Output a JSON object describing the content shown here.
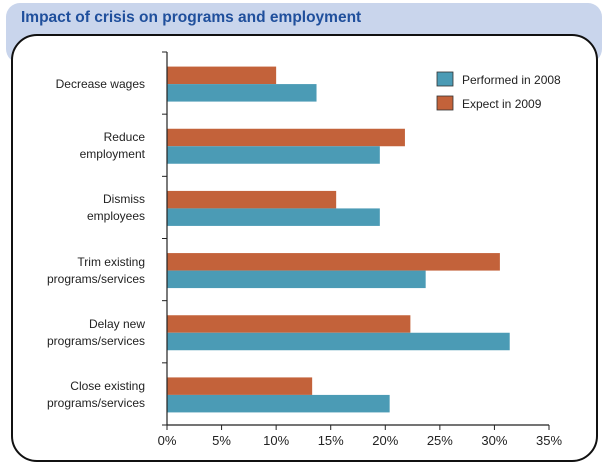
{
  "chart_data": {
    "type": "bar",
    "orientation": "horizontal",
    "title": "Impact of crisis on programs and employment",
    "categories": [
      "Decrease wages",
      "Reduce\nemployment",
      "Dismiss\nemployees",
      "Trim existing\nprograms/services",
      "Delay new\nprograms/services",
      "Close existing\nprograms/services"
    ],
    "series": [
      {
        "name": "Expect in 2009",
        "color": "#c3623a",
        "values": [
          10,
          21.8,
          15.5,
          30.5,
          22.3,
          13.3
        ]
      },
      {
        "name": "Performed in 2008",
        "color": "#4b9bb5",
        "values": [
          13.7,
          19.5,
          19.5,
          23.7,
          31.4,
          20.4
        ]
      }
    ],
    "xlim": [
      0,
      35
    ],
    "xticks": [
      "0%",
      "5%",
      "10%",
      "15%",
      "20%",
      "25%",
      "30%",
      "35%"
    ],
    "xlabel": "",
    "ylabel": "",
    "grid": false,
    "legend": {
      "position": "top-right",
      "entries": [
        {
          "label": "Performed in 2008",
          "color": "#4b9bb5"
        },
        {
          "label": "Expect in 2009",
          "color": "#c3623a"
        }
      ]
    }
  }
}
